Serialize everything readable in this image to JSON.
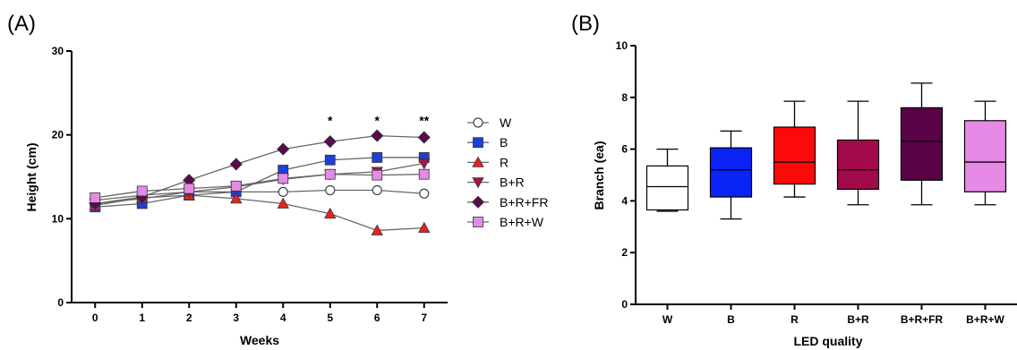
{
  "chart_data": [
    {
      "panel": "(A)",
      "type": "line",
      "xlabel": "Weeks",
      "ylabel": "Height (cm)",
      "x": [
        0,
        1,
        2,
        3,
        4,
        5,
        6,
        7
      ],
      "xlim": [
        -0.5,
        7.5
      ],
      "ylim": [
        0,
        30
      ],
      "yticks": [
        0,
        10,
        20,
        30
      ],
      "grid": false,
      "legend_position": "right",
      "series": [
        {
          "name": "W",
          "marker": "circle-open",
          "color": "#ffffff",
          "values": [
            12.2,
            12.8,
            13.2,
            13.2,
            13.2,
            13.4,
            13.4,
            13.0
          ]
        },
        {
          "name": "B",
          "marker": "square",
          "color": "#1f3fd6",
          "values": [
            11.4,
            11.8,
            12.8,
            13.2,
            15.8,
            17.0,
            17.3,
            17.3
          ]
        },
        {
          "name": "R",
          "marker": "triangle-up",
          "color": "#e8231f",
          "values": [
            11.6,
            12.5,
            12.8,
            12.4,
            11.8,
            10.6,
            8.6,
            8.9
          ]
        },
        {
          "name": "B+R",
          "marker": "triangle-down",
          "color": "#a0164f",
          "values": [
            11.8,
            12.4,
            13.2,
            13.8,
            14.7,
            15.3,
            15.6,
            16.6
          ]
        },
        {
          "name": "B+R+FR",
          "marker": "diamond",
          "color": "#5a0b4d",
          "values": [
            11.8,
            12.6,
            14.6,
            16.5,
            18.3,
            19.2,
            19.9,
            19.7
          ]
        },
        {
          "name": "B+R+W",
          "marker": "square",
          "color": "#e58ae6",
          "values": [
            12.5,
            13.3,
            13.6,
            13.9,
            14.8,
            15.3,
            15.2,
            15.3
          ]
        }
      ],
      "annotations": [
        {
          "x": 5,
          "y": 21.2,
          "text": "*"
        },
        {
          "x": 6,
          "y": 21.2,
          "text": "*"
        },
        {
          "x": 7,
          "y": 21.2,
          "text": "**"
        }
      ]
    },
    {
      "panel": "(B)",
      "type": "box",
      "xlabel": "LED quality",
      "ylabel": "Branch (ea)",
      "categories": [
        "W",
        "B",
        "R",
        "B+R",
        "B+R+FR",
        "B+R+W"
      ],
      "ylim": [
        0,
        10
      ],
      "yticks": [
        0,
        2,
        4,
        6,
        8,
        10
      ],
      "grid": false,
      "boxes": [
        {
          "name": "W",
          "color": "#ffffff",
          "min": 3.6,
          "q1": 3.65,
          "median": 4.55,
          "q3": 5.35,
          "max": 6.0
        },
        {
          "name": "B",
          "color": "#0a24f5",
          "min": 3.3,
          "q1": 4.15,
          "median": 5.2,
          "q3": 6.05,
          "max": 6.7
        },
        {
          "name": "R",
          "color": "#fb0a0a",
          "min": 4.15,
          "q1": 4.65,
          "median": 5.5,
          "q3": 6.85,
          "max": 7.85
        },
        {
          "name": "B+R",
          "color": "#a30a4c",
          "min": 3.85,
          "q1": 4.45,
          "median": 5.2,
          "q3": 6.35,
          "max": 7.85
        },
        {
          "name": "B+R+FR",
          "color": "#5a0246",
          "min": 3.85,
          "q1": 4.8,
          "median": 6.3,
          "q3": 7.6,
          "max": 8.55
        },
        {
          "name": "B+R+W",
          "color": "#e78ae6",
          "min": 3.85,
          "q1": 4.35,
          "median": 5.5,
          "q3": 7.1,
          "max": 7.85
        }
      ]
    }
  ]
}
